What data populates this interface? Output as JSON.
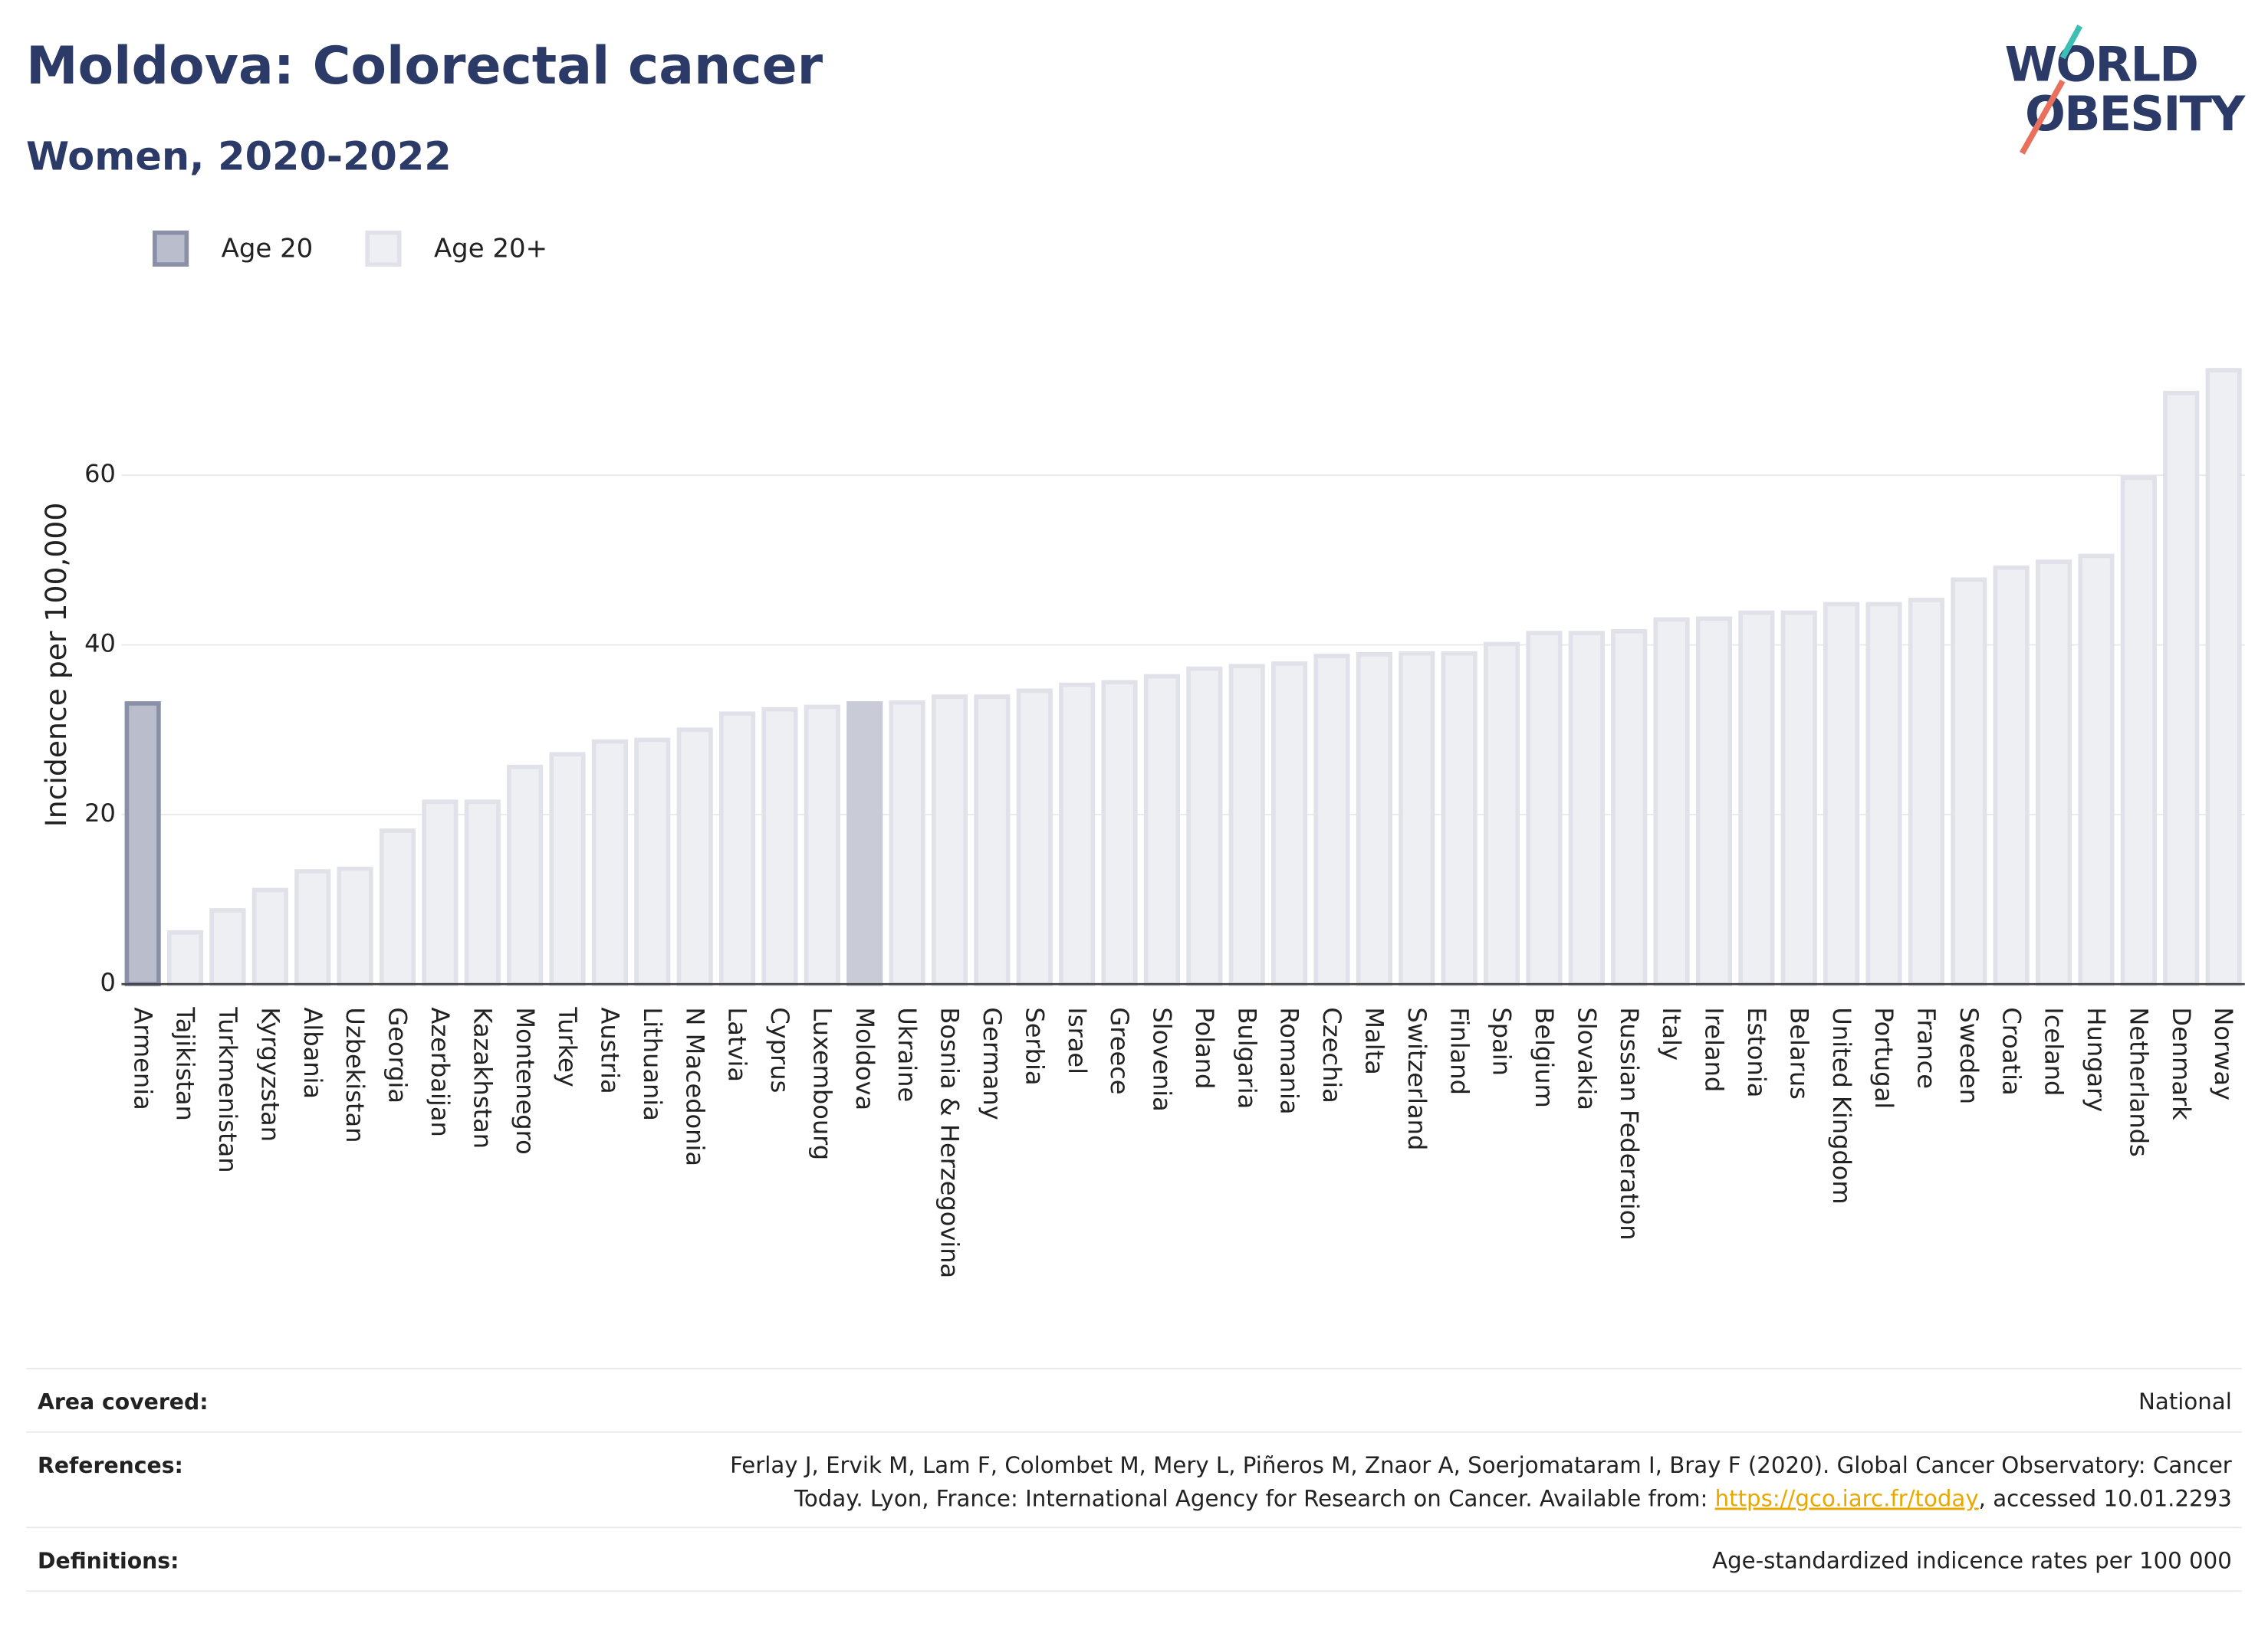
{
  "chart_data": {
    "type": "bar",
    "title": "Moldova: Colorectal cancer",
    "subtitle": "Women, 2020-2022",
    "y_label": "Incidence per 100,000",
    "logo": [
      "WORLD",
      "OBESITY"
    ],
    "categories": [
      "Armenia",
      "Tajikistan",
      "Turkmenistan",
      "Kyrgyzstan",
      "Albania",
      "Uzbekistan",
      "Georgia",
      "Azerbaijan",
      "Kazakhstan",
      "Montenegro",
      "Turkey",
      "Austria",
      "Lithuania",
      "N Macedonia",
      "Latvia",
      "Cyprus",
      "Luxembourg",
      "Moldova",
      "Ukraine",
      "Bosnia & Herzegovina",
      "Germany",
      "Serbia",
      "Israel",
      "Greece",
      "Slovenia",
      "Poland",
      "Bulgaria",
      "Romania",
      "Czechia",
      "Malta",
      "Switzerland",
      "Finland",
      "Spain",
      "Belgium",
      "Slovakia",
      "Russian Federation",
      "Italy",
      "Ireland",
      "Estonia",
      "Belarus",
      "United Kingdom",
      "Portugal",
      "France",
      "Sweden",
      "Croatia",
      "Iceland",
      "Hungary",
      "Netherlands",
      "Denmark",
      "Norway"
    ],
    "series": [
      {
        "name": "Age 20",
        "color": "#b9bdcc",
        "stroke": "#8a90a8",
        "values": [
          33.1,
          null,
          null,
          null,
          null,
          null,
          null,
          null,
          null,
          null,
          null,
          null,
          null,
          null,
          null,
          null,
          null,
          null,
          null,
          null,
          null,
          null,
          null,
          null,
          null,
          null,
          null,
          null,
          null,
          null,
          null,
          null,
          null,
          null,
          null,
          null,
          null,
          null,
          null,
          null,
          null,
          null,
          null,
          null,
          null,
          null,
          null,
          null,
          null,
          null
        ]
      },
      {
        "name": "Age 20+",
        "color": "#eeeff3",
        "stroke": "#e1e2e9",
        "highlight_index": 17,
        "highlight_color": "#c9cbd7",
        "values": [
          null,
          6.1,
          8.7,
          11.1,
          13.3,
          13.6,
          18.1,
          21.5,
          21.5,
          25.6,
          27.1,
          28.6,
          28.8,
          30.0,
          31.9,
          32.4,
          32.7,
          33.1,
          33.2,
          33.9,
          33.9,
          34.6,
          35.3,
          35.6,
          36.3,
          37.2,
          37.5,
          37.8,
          38.7,
          38.9,
          39.0,
          39.0,
          40.1,
          41.4,
          41.4,
          41.6,
          43.0,
          43.1,
          43.8,
          43.8,
          44.8,
          44.8,
          45.3,
          47.7,
          49.1,
          49.8,
          50.5,
          59.7,
          69.7,
          72.4
        ]
      }
    ],
    "ylim": [
      0,
      76
    ],
    "yticks": [
      0,
      20,
      40,
      60
    ],
    "grid": true
  },
  "footer": {
    "area": {
      "label": "Area covered:",
      "text": "National"
    },
    "references": {
      "label": "References:",
      "line1": "Ferlay J, Ervik M, Lam F, Colombet M, Mery L, Piñeros M, Znaor A, Soerjomataram I, Bray F (2020). Global Cancer Observatory: Cancer",
      "line2": "Today. Lyon, France: International Agency for Research on Cancer. Available from: ",
      "link": "https://gco.iarc.fr/today",
      "line2_end": ", accessed 10.01.2293"
    },
    "definitions": {
      "label": "Definitions:",
      "text": "Age-standardized indicence rates per 100 000"
    }
  }
}
